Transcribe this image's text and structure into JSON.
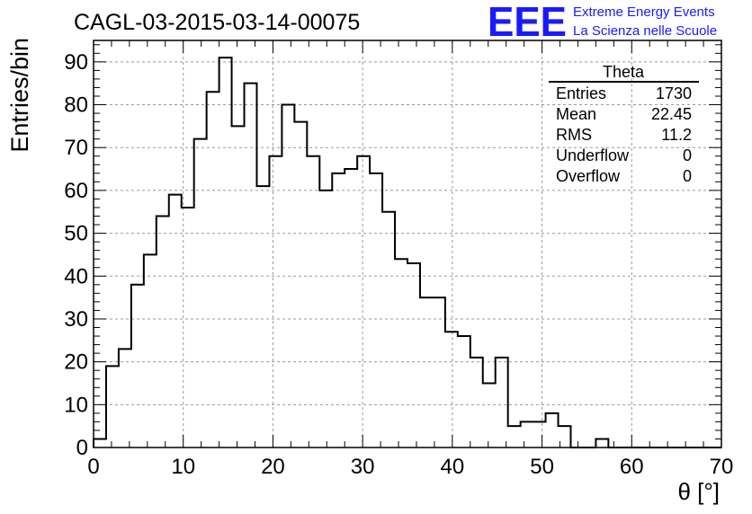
{
  "chart_data": {
    "type": "bar",
    "histogram": true,
    "title": "CAGL-03-2015-03-14-00075",
    "xlabel": "θ [°]",
    "ylabel": "Entries/bin",
    "xlim": [
      0,
      70
    ],
    "ylim": [
      0,
      95
    ],
    "bin_width": 1.4,
    "x_ticks": [
      0,
      10,
      20,
      30,
      40,
      50,
      60,
      70
    ],
    "y_ticks": [
      0,
      10,
      20,
      30,
      40,
      50,
      60,
      70,
      80,
      90
    ],
    "grid": true,
    "values": [
      2,
      19,
      23,
      38,
      45,
      54,
      59,
      56,
      72,
      83,
      91,
      75,
      85,
      61,
      68,
      80,
      76,
      68,
      60,
      64,
      65,
      68,
      64,
      55,
      44,
      43,
      35,
      35,
      27,
      26,
      21,
      15,
      21,
      5,
      6,
      6,
      8,
      5,
      0,
      0,
      2,
      0,
      0,
      0,
      0,
      0,
      0,
      0,
      0,
      0
    ],
    "stats_box": {
      "title": "Theta",
      "position": "top-right",
      "rows": [
        {
          "label": "Entries",
          "value": "1730"
        },
        {
          "label": "Mean",
          "value": "22.45"
        },
        {
          "label": "RMS",
          "value": "11.2"
        },
        {
          "label": "Underflow",
          "value": "0"
        },
        {
          "label": "Overflow",
          "value": "0"
        }
      ]
    }
  },
  "logo": {
    "mark": "EEE",
    "line1": "Extreme Energy Events",
    "line2": "La Scienza nelle Scuole",
    "color": "#1a1aff"
  }
}
